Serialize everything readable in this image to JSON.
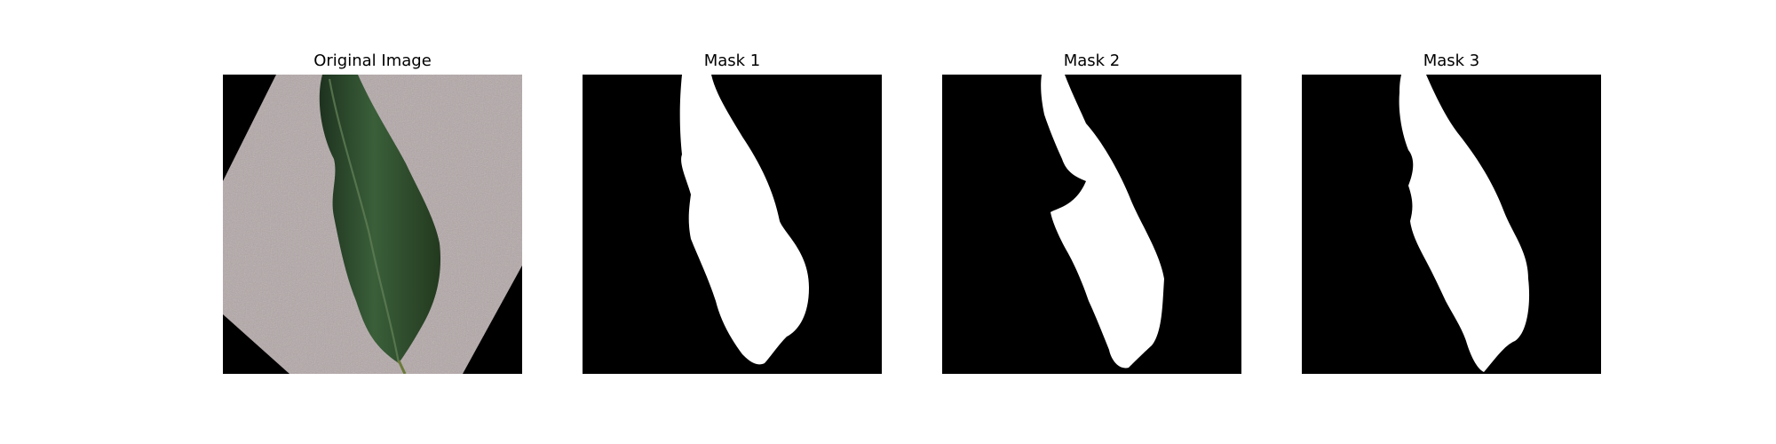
{
  "colors": {
    "mask_background": "#000000",
    "mask_foreground": "#ffffff",
    "leaf_dark": "#223a22",
    "leaf_mid": "#3a5f39",
    "paper": "#b3a7a8"
  },
  "panels": [
    {
      "title": "Original Image",
      "kind": "photo"
    },
    {
      "title": "Mask 1",
      "kind": "mask"
    },
    {
      "title": "Mask 2",
      "kind": "mask"
    },
    {
      "title": "Mask 3",
      "kind": "mask"
    }
  ]
}
